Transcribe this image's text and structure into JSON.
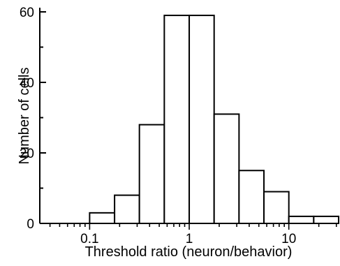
{
  "chart_data": {
    "type": "bar",
    "title": "",
    "xlabel": "Threshold ratio (neuron/behavior)",
    "ylabel": "Number of cells",
    "x_scale": "log10",
    "xlim": [
      0.0316,
      31.6
    ],
    "ylim": [
      0,
      60
    ],
    "xticks": [
      {
        "value": 0.1,
        "label": "0.1"
      },
      {
        "value": 1,
        "label": "1"
      },
      {
        "value": 10,
        "label": "10"
      }
    ],
    "yticks": [
      {
        "value": 0,
        "label": "0"
      },
      {
        "value": 20,
        "label": "20"
      },
      {
        "value": 40,
        "label": "40"
      },
      {
        "value": 60,
        "label": "60"
      }
    ],
    "bins": [
      {
        "from": 0.1,
        "to": 0.178,
        "value": 3
      },
      {
        "from": 0.178,
        "to": 0.316,
        "value": 8
      },
      {
        "from": 0.316,
        "to": 0.562,
        "value": 28
      },
      {
        "from": 0.562,
        "to": 1.0,
        "value": 59
      },
      {
        "from": 1.0,
        "to": 1.778,
        "value": 59
      },
      {
        "from": 1.778,
        "to": 3.162,
        "value": 31
      },
      {
        "from": 3.162,
        "to": 5.623,
        "value": 15
      },
      {
        "from": 5.623,
        "to": 10.0,
        "value": 9
      },
      {
        "from": 10.0,
        "to": 17.78,
        "value": 2
      },
      {
        "from": 17.78,
        "to": 31.62,
        "value": 2
      }
    ],
    "grid": false,
    "legend": "none"
  }
}
